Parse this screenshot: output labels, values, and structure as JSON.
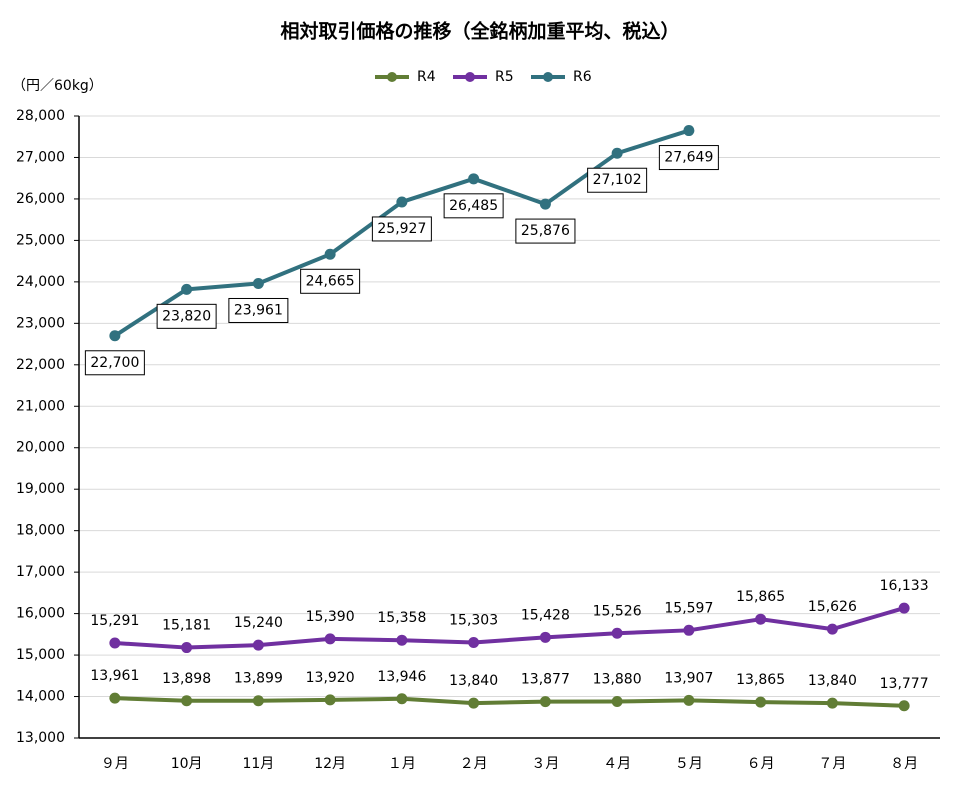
{
  "chart_data": {
    "type": "line",
    "title": "相対取引価格の推移（全銘柄加重平均、税込）",
    "y_label": "（円／60kg）",
    "categories": [
      "９月",
      "10月",
      "11月",
      "12月",
      "１月",
      "２月",
      "３月",
      "４月",
      "５月",
      "６月",
      "７月",
      "８月"
    ],
    "ylim": [
      13000,
      28000
    ],
    "yticks": [
      {
        "value": 13000,
        "label": "13,000"
      },
      {
        "value": 14000,
        "label": "14,000"
      },
      {
        "value": 15000,
        "label": "15,000"
      },
      {
        "value": 16000,
        "label": "16,000"
      },
      {
        "value": 17000,
        "label": "17,000"
      },
      {
        "value": 18000,
        "label": "18,000"
      },
      {
        "value": 19000,
        "label": "19,000"
      },
      {
        "value": 20000,
        "label": "20,000"
      },
      {
        "value": 21000,
        "label": "21,000"
      },
      {
        "value": 22000,
        "label": "22,000"
      },
      {
        "value": 23000,
        "label": "23,000"
      },
      {
        "value": 24000,
        "label": "24,000"
      },
      {
        "value": 25000,
        "label": "25,000"
      },
      {
        "value": 26000,
        "label": "26,000"
      },
      {
        "value": 27000,
        "label": "27,000"
      },
      {
        "value": 28000,
        "label": "28,000"
      }
    ],
    "grid": true,
    "legend": "top",
    "series": [
      {
        "name": "R4",
        "color": "#617d35",
        "label_position": "above",
        "label_box": false,
        "values": [
          13961,
          13898,
          13899,
          13920,
          13946,
          13840,
          13877,
          13880,
          13907,
          13865,
          13840,
          13777
        ],
        "value_labels": [
          "13,961",
          "13,898",
          "13,899",
          "13,920",
          "13,946",
          "13,840",
          "13,877",
          "13,880",
          "13,907",
          "13,865",
          "13,840",
          "13,777"
        ]
      },
      {
        "name": "R5",
        "color": "#7030a0",
        "label_position": "above",
        "label_box": false,
        "values": [
          15291,
          15181,
          15240,
          15390,
          15358,
          15303,
          15428,
          15526,
          15597,
          15865,
          15626,
          16133
        ],
        "value_labels": [
          "15,291",
          "15,181",
          "15,240",
          "15,390",
          "15,358",
          "15,303",
          "15,428",
          "15,526",
          "15,597",
          "15,865",
          "15,626",
          "16,133"
        ]
      },
      {
        "name": "R6",
        "color": "#31717f",
        "label_position": "below",
        "label_box": true,
        "values": [
          22700,
          23820,
          23961,
          24665,
          25927,
          26485,
          25876,
          27102,
          27649,
          null,
          null,
          null
        ],
        "value_labels": [
          "22,700",
          "23,820",
          "23,961",
          "24,665",
          "25,927",
          "26,485",
          "25,876",
          "27,102",
          "27,649",
          null,
          null,
          null
        ]
      }
    ]
  }
}
